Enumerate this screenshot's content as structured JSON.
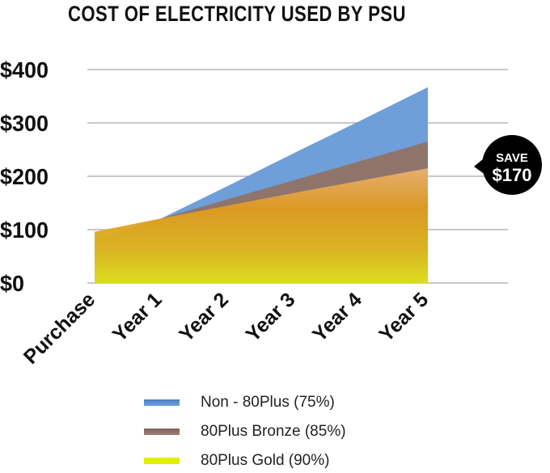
{
  "chart_data": {
    "type": "area",
    "title": "COST OF ELECTRICITY USED BY PSU",
    "categories": [
      "Purchase",
      "Year 1",
      "Year 2",
      "Year 3",
      "Year 4",
      "Year 5"
    ],
    "ylim": [
      0,
      400
    ],
    "yticks": [
      0,
      100,
      200,
      300,
      400
    ],
    "ytick_labels": [
      "$0",
      "$100",
      "$200",
      "$300",
      "$400"
    ],
    "grid": true,
    "legend_position": "bottom",
    "series": [
      {
        "name": "Non - 80Plus (75%)",
        "color": "#5b8fd0",
        "values": [
          60,
          121,
          182,
          244,
          305,
          367
        ]
      },
      {
        "name": "80Plus Bronze (85%)",
        "color": "#8f6e66",
        "values": [
          82,
          121,
          157,
          193,
          229,
          265
        ]
      },
      {
        "name": "80Plus Gold (90%)",
        "color": "#e0e800",
        "values": [
          96,
          121,
          145,
          169,
          192,
          215
        ]
      }
    ],
    "annotation": {
      "line1": "SAVE",
      "line2": "$170"
    }
  }
}
